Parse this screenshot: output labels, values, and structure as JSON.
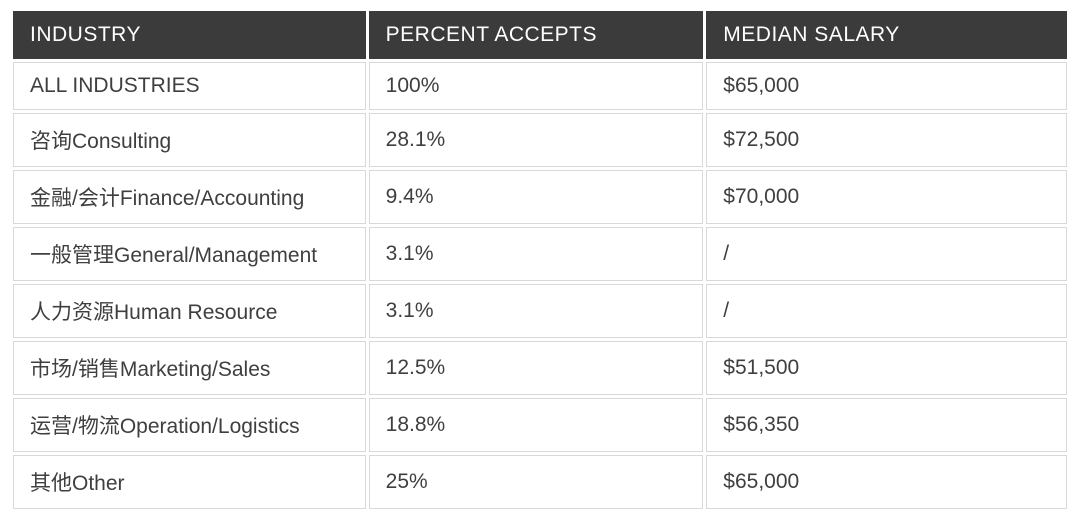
{
  "chart_data": {
    "type": "table",
    "title": "",
    "columns": [
      "INDUSTRY",
      "PERCENT ACCEPTS",
      "MEDIAN SALARY"
    ],
    "rows": [
      {
        "industry": "ALL INDUSTRIES",
        "percent_accepts": "100%",
        "median_salary": "$65,000"
      },
      {
        "industry": "咨询Consulting",
        "percent_accepts": "28.1%",
        "median_salary": "$72,500"
      },
      {
        "industry": "金融/会计Finance/Accounting",
        "percent_accepts": "9.4%",
        "median_salary": "$70,000"
      },
      {
        "industry": "一般管理General/Management",
        "percent_accepts": "3.1%",
        "median_salary": "/"
      },
      {
        "industry": "人力资源Human Resource",
        "percent_accepts": "3.1%",
        "median_salary": "/"
      },
      {
        "industry": "市场/销售Marketing/Sales",
        "percent_accepts": "12.5%",
        "median_salary": "$51,500"
      },
      {
        "industry": "运营/物流Operation/Logistics",
        "percent_accepts": "18.8%",
        "median_salary": "$56,350"
      },
      {
        "industry": "其他Other",
        "percent_accepts": "25%",
        "median_salary": "$65,000"
      }
    ]
  },
  "colors": {
    "header_bg": "#3b3b3b",
    "header_text": "#ffffff",
    "body_bg": "#ffffff",
    "body_text": "#3f3f3f",
    "border": "#d9d9d9"
  }
}
